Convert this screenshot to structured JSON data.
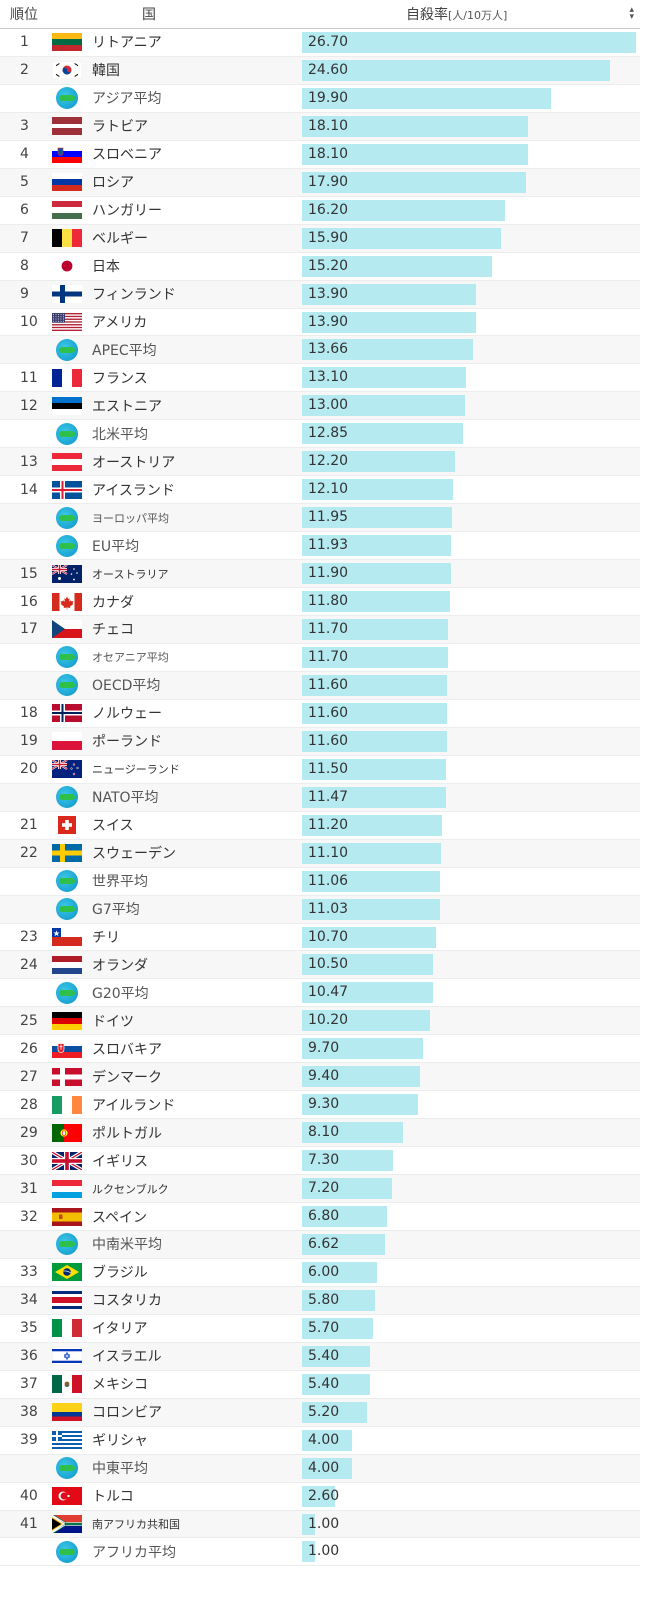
{
  "header": {
    "rank": "順位",
    "country": "国",
    "metric": "自殺率",
    "unit": "[人/10万人]"
  },
  "chart_data": {
    "type": "bar",
    "orientation": "horizontal",
    "title": "",
    "xlabel": "自殺率[人/10万人]",
    "xlim": [
      0,
      26.7
    ],
    "rows": [
      {
        "rank": "1",
        "name": "リトアニア",
        "value": 26.7,
        "label": "26.70",
        "flag": "lithuania"
      },
      {
        "rank": "2",
        "name": "韓国",
        "value": 24.6,
        "label": "24.60",
        "flag": "korea"
      },
      {
        "rank": "",
        "name": "アジア平均",
        "value": 19.9,
        "label": "19.90",
        "flag": "globe"
      },
      {
        "rank": "3",
        "name": "ラトビア",
        "value": 18.1,
        "label": "18.10",
        "flag": "latvia"
      },
      {
        "rank": "4",
        "name": "スロベニア",
        "value": 18.1,
        "label": "18.10",
        "flag": "slovenia"
      },
      {
        "rank": "5",
        "name": "ロシア",
        "value": 17.9,
        "label": "17.90",
        "flag": "russia"
      },
      {
        "rank": "6",
        "name": "ハンガリー",
        "value": 16.2,
        "label": "16.20",
        "flag": "hungary"
      },
      {
        "rank": "7",
        "name": "ベルギー",
        "value": 15.9,
        "label": "15.90",
        "flag": "belgium"
      },
      {
        "rank": "8",
        "name": "日本",
        "value": 15.2,
        "label": "15.20",
        "flag": "japan"
      },
      {
        "rank": "9",
        "name": "フィンランド",
        "value": 13.9,
        "label": "13.90",
        "flag": "finland"
      },
      {
        "rank": "10",
        "name": "アメリカ",
        "value": 13.9,
        "label": "13.90",
        "flag": "usa"
      },
      {
        "rank": "",
        "name": "APEC平均",
        "value": 13.66,
        "label": "13.66",
        "flag": "globe"
      },
      {
        "rank": "11",
        "name": "フランス",
        "value": 13.1,
        "label": "13.10",
        "flag": "france"
      },
      {
        "rank": "12",
        "name": "エストニア",
        "value": 13.0,
        "label": "13.00",
        "flag": "estonia"
      },
      {
        "rank": "",
        "name": "北米平均",
        "value": 12.85,
        "label": "12.85",
        "flag": "globe"
      },
      {
        "rank": "13",
        "name": "オーストリア",
        "value": 12.2,
        "label": "12.20",
        "flag": "austria"
      },
      {
        "rank": "14",
        "name": "アイスランド",
        "value": 12.1,
        "label": "12.10",
        "flag": "iceland"
      },
      {
        "rank": "",
        "name": "ヨーロッパ平均",
        "value": 11.95,
        "label": "11.95",
        "flag": "globe"
      },
      {
        "rank": "",
        "name": "EU平均",
        "value": 11.93,
        "label": "11.93",
        "flag": "globe"
      },
      {
        "rank": "15",
        "name": "オーストラリア",
        "value": 11.9,
        "label": "11.90",
        "flag": "australia"
      },
      {
        "rank": "16",
        "name": "カナダ",
        "value": 11.8,
        "label": "11.80",
        "flag": "canada"
      },
      {
        "rank": "17",
        "name": "チェコ",
        "value": 11.7,
        "label": "11.70",
        "flag": "czech"
      },
      {
        "rank": "",
        "name": "オセアニア平均",
        "value": 11.7,
        "label": "11.70",
        "flag": "globe"
      },
      {
        "rank": "",
        "name": "OECD平均",
        "value": 11.6,
        "label": "11.60",
        "flag": "globe"
      },
      {
        "rank": "18",
        "name": "ノルウェー",
        "value": 11.6,
        "label": "11.60",
        "flag": "norway"
      },
      {
        "rank": "19",
        "name": "ポーランド",
        "value": 11.6,
        "label": "11.60",
        "flag": "poland"
      },
      {
        "rank": "20",
        "name": "ニュージーランド",
        "value": 11.5,
        "label": "11.50",
        "flag": "newzealand"
      },
      {
        "rank": "",
        "name": "NATO平均",
        "value": 11.47,
        "label": "11.47",
        "flag": "globe"
      },
      {
        "rank": "21",
        "name": "スイス",
        "value": 11.2,
        "label": "11.20",
        "flag": "switzerland"
      },
      {
        "rank": "22",
        "name": "スウェーデン",
        "value": 11.1,
        "label": "11.10",
        "flag": "sweden"
      },
      {
        "rank": "",
        "name": "世界平均",
        "value": 11.06,
        "label": "11.06",
        "flag": "globe"
      },
      {
        "rank": "",
        "name": "G7平均",
        "value": 11.03,
        "label": "11.03",
        "flag": "globe"
      },
      {
        "rank": "23",
        "name": "チリ",
        "value": 10.7,
        "label": "10.70",
        "flag": "chile"
      },
      {
        "rank": "24",
        "name": "オランダ",
        "value": 10.5,
        "label": "10.50",
        "flag": "netherlands"
      },
      {
        "rank": "",
        "name": "G20平均",
        "value": 10.47,
        "label": "10.47",
        "flag": "globe"
      },
      {
        "rank": "25",
        "name": "ドイツ",
        "value": 10.2,
        "label": "10.20",
        "flag": "germany"
      },
      {
        "rank": "26",
        "name": "スロバキア",
        "value": 9.7,
        "label": "9.70",
        "flag": "slovakia"
      },
      {
        "rank": "27",
        "name": "デンマーク",
        "value": 9.4,
        "label": "9.40",
        "flag": "denmark"
      },
      {
        "rank": "28",
        "name": "アイルランド",
        "value": 9.3,
        "label": "9.30",
        "flag": "ireland"
      },
      {
        "rank": "29",
        "name": "ポルトガル",
        "value": 8.1,
        "label": "8.10",
        "flag": "portugal"
      },
      {
        "rank": "30",
        "name": "イギリス",
        "value": 7.3,
        "label": "7.30",
        "flag": "uk"
      },
      {
        "rank": "31",
        "name": "ルクセンブルク",
        "value": 7.2,
        "label": "7.20",
        "flag": "luxembourg"
      },
      {
        "rank": "32",
        "name": "スペイン",
        "value": 6.8,
        "label": "6.80",
        "flag": "spain"
      },
      {
        "rank": "",
        "name": "中南米平均",
        "value": 6.62,
        "label": "6.62",
        "flag": "globe"
      },
      {
        "rank": "33",
        "name": "ブラジル",
        "value": 6.0,
        "label": "6.00",
        "flag": "brazil"
      },
      {
        "rank": "34",
        "name": "コスタリカ",
        "value": 5.8,
        "label": "5.80",
        "flag": "costarica"
      },
      {
        "rank": "35",
        "name": "イタリア",
        "value": 5.7,
        "label": "5.70",
        "flag": "italy"
      },
      {
        "rank": "36",
        "name": "イスラエル",
        "value": 5.4,
        "label": "5.40",
        "flag": "israel"
      },
      {
        "rank": "37",
        "name": "メキシコ",
        "value": 5.4,
        "label": "5.40",
        "flag": "mexico"
      },
      {
        "rank": "38",
        "name": "コロンビア",
        "value": 5.2,
        "label": "5.20",
        "flag": "colombia"
      },
      {
        "rank": "39",
        "name": "ギリシャ",
        "value": 4.0,
        "label": "4.00",
        "flag": "greece"
      },
      {
        "rank": "",
        "name": "中東平均",
        "value": 4.0,
        "label": "4.00",
        "flag": "globe"
      },
      {
        "rank": "40",
        "name": "トルコ",
        "value": 2.6,
        "label": "2.60",
        "flag": "turkey"
      },
      {
        "rank": "41",
        "name": "南アフリカ共和国",
        "value": 1.0,
        "label": "1.00",
        "flag": "southafrica"
      },
      {
        "rank": "",
        "name": "アフリカ平均",
        "value": 1.0,
        "label": "1.00",
        "flag": "globe"
      }
    ]
  },
  "colors": {
    "bar": "#b6eaf1",
    "row_alt": "#f7f7f7"
  }
}
